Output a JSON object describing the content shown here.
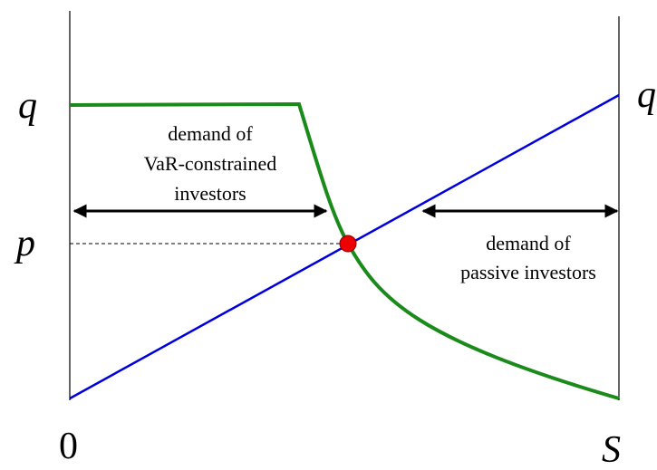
{
  "labels": {
    "q_left": "q",
    "p_left": "p",
    "origin": "0",
    "s_axis": "S",
    "q_right": "q"
  },
  "annotations": {
    "var_demand": [
      "demand of",
      "VaR-constrained",
      "investors"
    ],
    "passive_demand": [
      "demand of",
      "passive investors"
    ]
  }
}
